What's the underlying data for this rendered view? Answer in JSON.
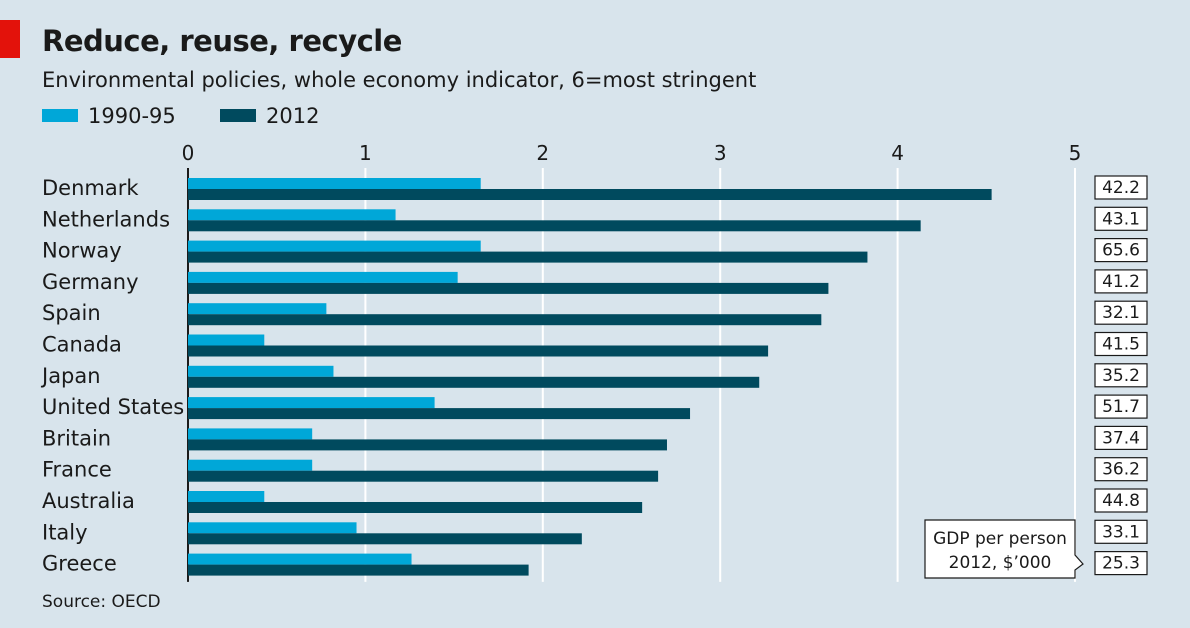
{
  "title": "Reduce, reuse, recycle",
  "subtitle": "Environmental policies, whole economy indicator, 6=most stringent",
  "source": "Source: OECD",
  "colors": {
    "early": "#00a7d8",
    "late": "#004a5e",
    "accent": "#e3120b",
    "background": "#d8e4ec"
  },
  "legend": [
    {
      "label": "1990-95",
      "color": "#00a7d8"
    },
    {
      "label": "2012",
      "color": "#004a5e"
    }
  ],
  "gdp_note": [
    "GDP per person",
    "2012, $’000"
  ],
  "chart_data": {
    "type": "bar",
    "orientation": "horizontal",
    "categories": [
      "Denmark",
      "Netherlands",
      "Norway",
      "Germany",
      "Spain",
      "Canada",
      "Japan",
      "United States",
      "Britain",
      "France",
      "Australia",
      "Italy",
      "Greece"
    ],
    "series": [
      {
        "name": "1990-95",
        "values": [
          1.65,
          1.17,
          1.65,
          1.52,
          0.78,
          0.43,
          0.82,
          1.39,
          0.7,
          0.7,
          0.43,
          0.95,
          1.26
        ]
      },
      {
        "name": "2012",
        "values": [
          4.53,
          4.13,
          3.83,
          3.61,
          3.57,
          3.27,
          3.22,
          2.83,
          2.7,
          2.65,
          2.56,
          2.22,
          1.92
        ]
      }
    ],
    "gdp_per_person": [
      "42.2",
      "43.1",
      "65.6",
      "41.2",
      "32.1",
      "41.5",
      "35.2",
      "51.7",
      "37.4",
      "36.2",
      "44.8",
      "33.1",
      "25.3"
    ],
    "xlim": [
      0,
      5
    ],
    "xticks": [
      0,
      1,
      2,
      3,
      4,
      5
    ],
    "grid": true,
    "legend_position": "top-left"
  }
}
